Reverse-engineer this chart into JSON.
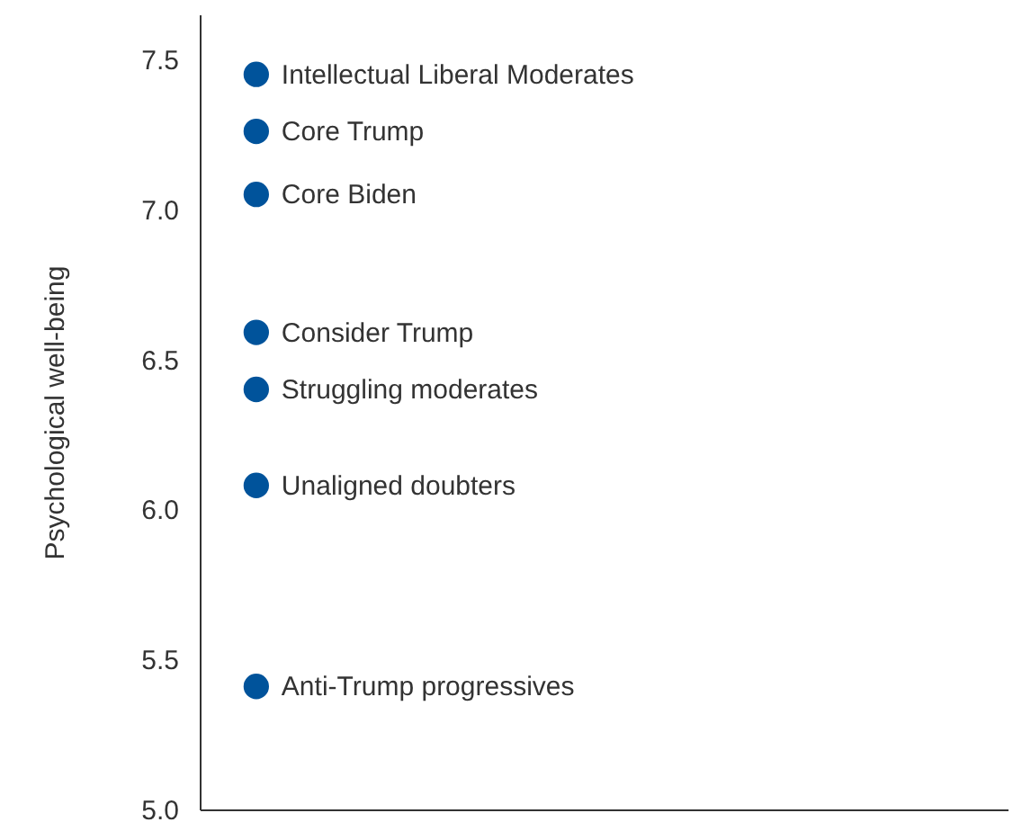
{
  "chart_data": {
    "type": "scatter",
    "ylabel": "Psychological well-being",
    "categories": [
      null
    ],
    "series": [
      {
        "name": "Intellectual Liberal Moderates",
        "color": "#00539b",
        "values": [
          7.45
        ]
      },
      {
        "name": "Core Trump",
        "color": "#00539b",
        "values": [
          7.26
        ]
      },
      {
        "name": "Core Biden",
        "color": "#00539b",
        "values": [
          7.05
        ]
      },
      {
        "name": "Consider Trump",
        "color": "#00539b",
        "values": [
          6.59
        ]
      },
      {
        "name": "Struggling moderates",
        "color": "#00539b",
        "values": [
          6.4
        ]
      },
      {
        "name": "Unaligned doubters",
        "color": "#00539b",
        "values": [
          6.08
        ]
      },
      {
        "name": "Anti-Trump progressives",
        "color": "#00539b",
        "values": [
          5.41
        ]
      }
    ],
    "ylim": [
      5.0,
      7.65
    ],
    "yticks": [
      {
        "value": 5,
        "label": "5.0"
      },
      5.5,
      {
        "value": 6,
        "label": "6.0"
      },
      6.5,
      {
        "value": 7,
        "label": "7.0"
      },
      7.5
    ],
    "grid": false,
    "marker": "circle",
    "tick_labels": "y"
  }
}
